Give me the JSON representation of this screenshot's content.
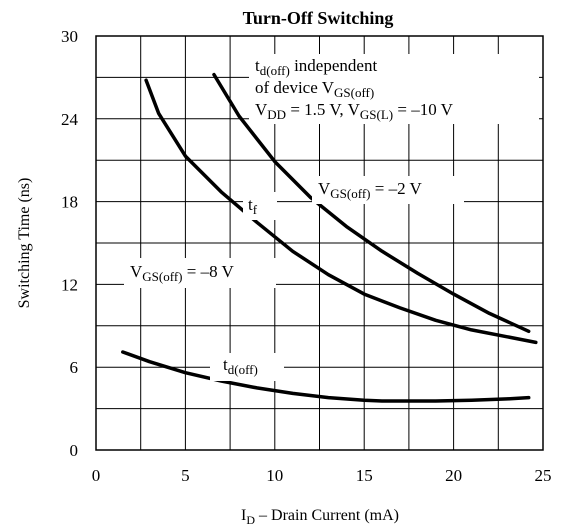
{
  "chart_data": {
    "type": "line",
    "title": "Turn-Off Switching",
    "xlabel": {
      "main": "I",
      "sub": "D",
      "rest": " – Drain Current (mA)"
    },
    "ylabel": "Switching Time (ns)",
    "xlim": [
      0,
      25
    ],
    "ylim": [
      0,
      30
    ],
    "xticks": [
      0,
      5,
      10,
      15,
      20,
      25
    ],
    "yticks": [
      0,
      6,
      12,
      18,
      24,
      30
    ],
    "xgrid": [
      2.5,
      5,
      7.5,
      10,
      12.5,
      15,
      17.5,
      20,
      22.5
    ],
    "ygrid": [
      3,
      6,
      9,
      12,
      15,
      18,
      21,
      24,
      27
    ],
    "series": [
      {
        "key": "tf_vgs_minus2",
        "x": [
          6.6,
          8,
          10,
          12,
          14,
          16,
          18,
          20,
          22,
          24.2
        ],
        "y": [
          27.2,
          24.2,
          20.9,
          18.3,
          16.2,
          14.4,
          12.8,
          11.3,
          9.9,
          8.6
        ]
      },
      {
        "key": "tf_vgs_minus8",
        "x": [
          2.8,
          3.5,
          5,
          7,
          9,
          11,
          13,
          15,
          17,
          19,
          21,
          23,
          24.6
        ],
        "y": [
          26.8,
          24.4,
          21.3,
          18.7,
          16.5,
          14.4,
          12.7,
          11.3,
          10.3,
          9.4,
          8.7,
          8.2,
          7.8
        ]
      },
      {
        "key": "td_off",
        "x": [
          1.5,
          3,
          5,
          7,
          9,
          11,
          13,
          15,
          16,
          17,
          19,
          21,
          23,
          24.2
        ],
        "y": [
          7.1,
          6.4,
          5.6,
          5.0,
          4.5,
          4.1,
          3.8,
          3.6,
          3.55,
          3.55,
          3.55,
          3.6,
          3.7,
          3.8
        ]
      }
    ],
    "annotations": {
      "note_line1_main": "t",
      "note_line1_sub": "d(off)",
      "note_line1_rest": " independent",
      "note_line2_main": "of device V",
      "note_line2_sub": "GS(off)",
      "note_line3_a": "V",
      "note_line3_a_sub": "DD",
      "note_line3_b": " = 1.5 V, V",
      "note_line3_b_sub": "GS(L)",
      "note_line3_c": " = –10 V",
      "vgs2_main": "V",
      "vgs2_sub": "GS(off)",
      "vgs2_rest": " = –2 V",
      "tf_main": "t",
      "tf_sub": "f",
      "vgs8_main": "V",
      "vgs8_sub": "GS(off)",
      "vgs8_rest": " = –8 V",
      "td_main": "t",
      "td_sub": "d(off)"
    }
  }
}
